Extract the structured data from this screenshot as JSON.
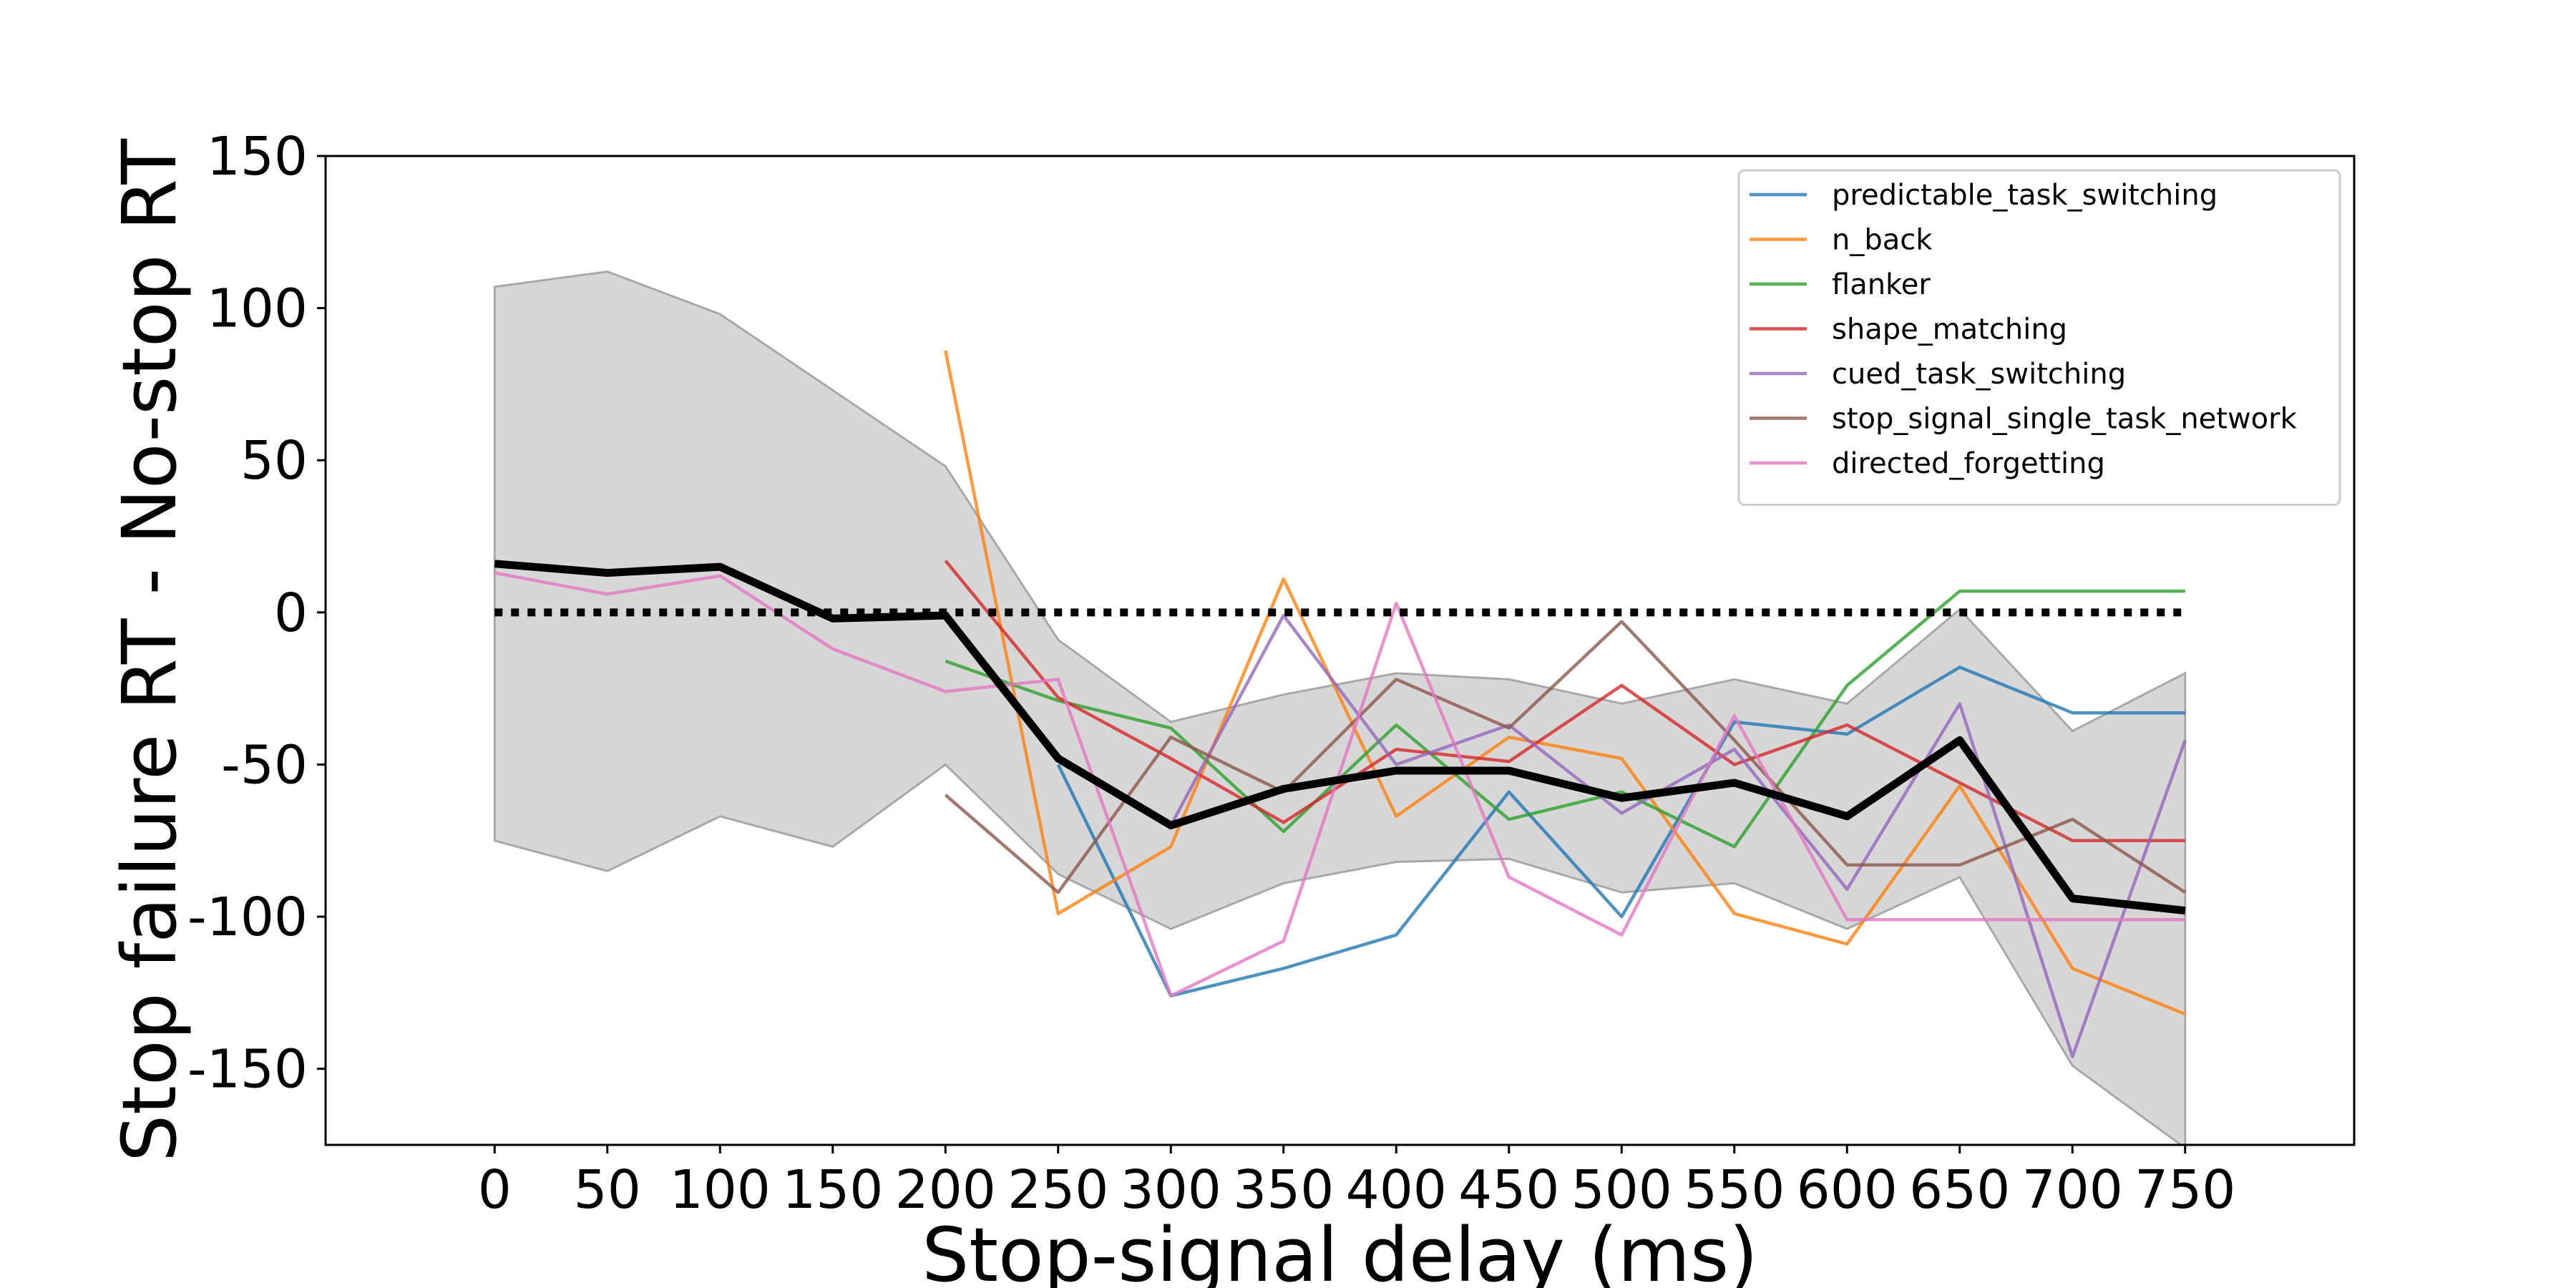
{
  "chart_data": {
    "type": "line",
    "title": "",
    "xlabel": "Stop-signal delay (ms)",
    "ylabel": "Stop failure RT - No-stop RT",
    "xlim": [
      -75,
      825
    ],
    "ylim": [
      -175,
      150
    ],
    "x_ticks": [
      0,
      50,
      100,
      150,
      200,
      250,
      300,
      350,
      400,
      450,
      500,
      550,
      600,
      650,
      700,
      750
    ],
    "y_ticks": [
      150,
      100,
      50,
      0,
      -50,
      -100,
      -150
    ],
    "legend_position": "top-right",
    "grid": false,
    "series": [
      {
        "name": "predictable_task_switching",
        "color": "#1f77b4",
        "x": [
          250,
          300,
          350,
          400,
          450,
          500,
          550,
          600,
          650,
          700,
          750
        ],
        "y": [
          -50,
          -126,
          -117,
          -106,
          -59,
          -100,
          -36,
          -40,
          -18,
          -33,
          -33
        ]
      },
      {
        "name": "n_back",
        "color": "#ff7f0e",
        "x": [
          200,
          250,
          300,
          350,
          400,
          450,
          500,
          550,
          600,
          650,
          700,
          750
        ],
        "y": [
          86,
          -99,
          -77,
          11,
          -67,
          -41,
          -48,
          -99,
          -109,
          -57,
          -117,
          -132
        ]
      },
      {
        "name": "flanker",
        "color": "#2ca02c",
        "x": [
          200,
          250,
          300,
          350,
          400,
          450,
          500,
          550,
          600,
          650,
          700,
          750
        ],
        "y": [
          -16,
          -29,
          -38,
          -72,
          -37,
          -68,
          -59,
          -77,
          -24,
          7,
          7,
          7
        ]
      },
      {
        "name": "shape_matching",
        "color": "#d62728",
        "x": [
          200,
          250,
          300,
          350,
          400,
          450,
          500,
          550,
          600,
          650,
          700,
          750
        ],
        "y": [
          17,
          -28,
          -48,
          -69,
          -45,
          -49,
          -24,
          -50,
          -37,
          -56,
          -75,
          -75
        ]
      },
      {
        "name": "cued_task_switching",
        "color": "#9467bd",
        "x": [
          300,
          350,
          400,
          450,
          500,
          550,
          600,
          650,
          700,
          750
        ],
        "y": [
          -70,
          -1,
          -50,
          -37,
          -66,
          -45,
          -91,
          -30,
          -146,
          -42
        ]
      },
      {
        "name": "stop_signal_single_task_network",
        "color": "#8c564b",
        "x": [
          200,
          250,
          300,
          350,
          400,
          450,
          500,
          550,
          600,
          650,
          700,
          750
        ],
        "y": [
          -60,
          -92,
          -41,
          -59,
          -22,
          -38,
          -3,
          -42,
          -83,
          -83,
          -68,
          -92
        ]
      },
      {
        "name": "directed_forgetting",
        "color": "#e377c2",
        "x": [
          0,
          50,
          100,
          150,
          200,
          250,
          300,
          350,
          400,
          450,
          500,
          550,
          600,
          650,
          700,
          750
        ],
        "y": [
          13,
          6,
          12,
          -12,
          -26,
          -22,
          -126,
          -108,
          3,
          -87,
          -106,
          -34,
          -101,
          -101,
          -101,
          -101
        ]
      }
    ],
    "mean_line": {
      "color": "#000000",
      "x": [
        0,
        50,
        100,
        150,
        200,
        250,
        300,
        350,
        400,
        450,
        500,
        550,
        600,
        650,
        700,
        750
      ],
      "y": [
        16,
        13,
        15,
        -2,
        -1,
        -48,
        -70,
        -58,
        -52,
        -52,
        -61,
        -56,
        -67,
        -42,
        -94,
        -98
      ]
    },
    "band": {
      "color": "#bdbdbd",
      "x": [
        0,
        50,
        100,
        150,
        200,
        250,
        300,
        350,
        400,
        450,
        500,
        550,
        600,
        650,
        700,
        750
      ],
      "upper": [
        107,
        112,
        98,
        73,
        48,
        -9,
        -36,
        -27,
        -20,
        -22,
        -30,
        -22,
        -30,
        1,
        -39,
        -20
      ],
      "lower": [
        -75,
        -85,
        -67,
        -77,
        -50,
        -86,
        -104,
        -89,
        -82,
        -81,
        -92,
        -89,
        -104,
        -87,
        -149,
        -176
      ]
    },
    "zero_line": {
      "y": 0,
      "color": "#000000",
      "style": "dotted"
    }
  }
}
